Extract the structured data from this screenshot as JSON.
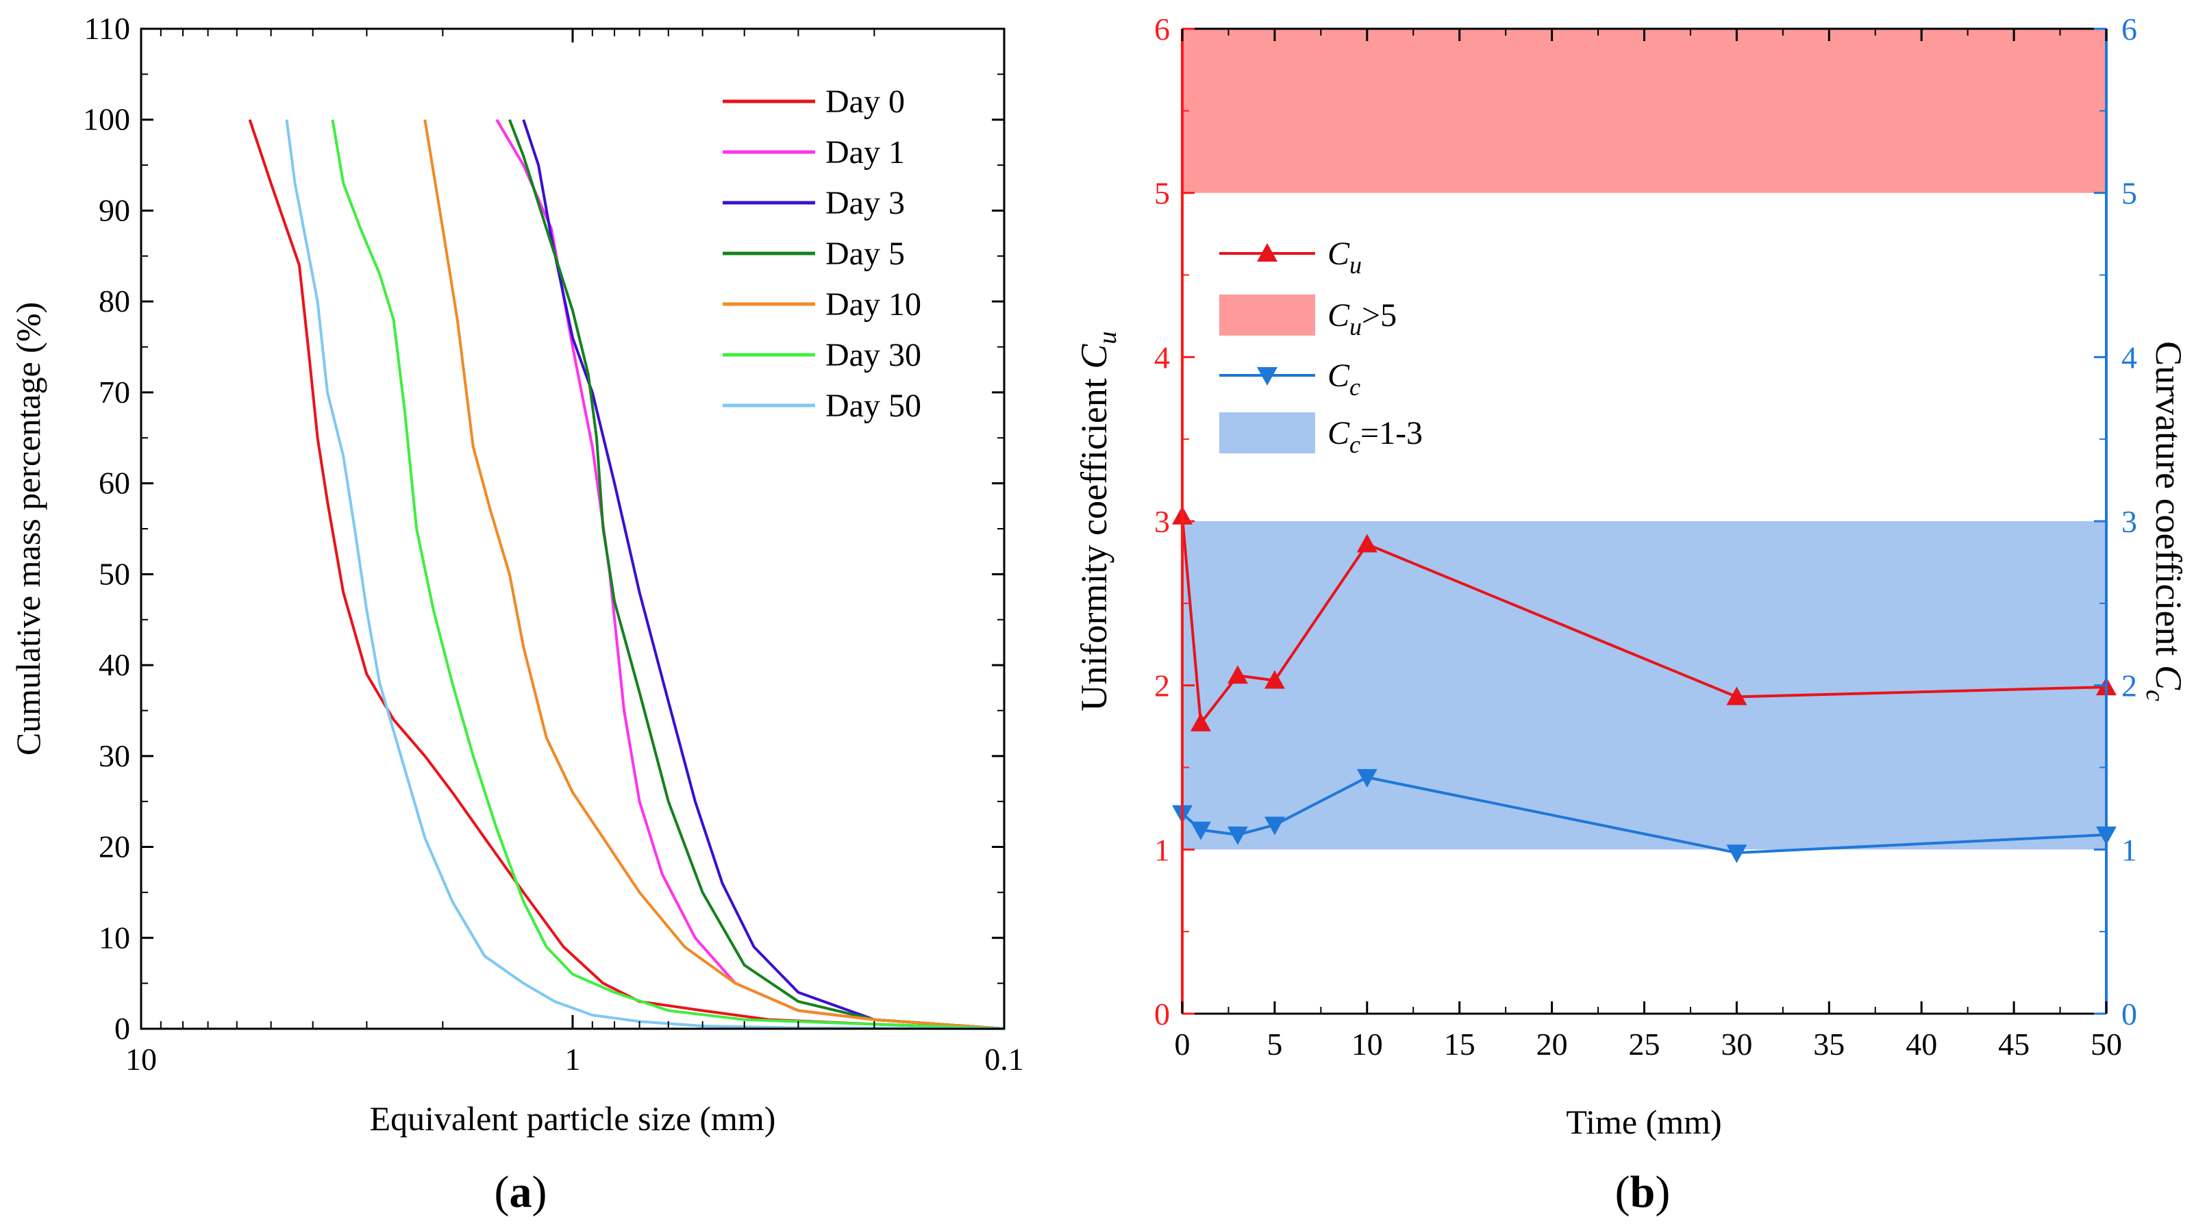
{
  "figure": {
    "panel_a_label": "a",
    "panel_b_label": "b"
  },
  "chart_data": [
    {
      "type": "line",
      "title": "",
      "xlabel": "Equivalent particle size (mm)",
      "ylabel": "Cumulative mass percentage (%)",
      "xscale": "log",
      "xaxis_direction": "reversed",
      "xlim": [
        10,
        0.1
      ],
      "ylim": [
        0,
        110
      ],
      "xticks": [
        10,
        1,
        0.1
      ],
      "xtick_labels": [
        "10",
        "1",
        "0.1"
      ],
      "yticks": [
        0,
        10,
        20,
        30,
        40,
        50,
        60,
        70,
        80,
        90,
        100,
        110
      ],
      "ytick_labels": [
        "0",
        "10",
        "20",
        "30",
        "40",
        "50",
        "60",
        "70",
        "80",
        "90",
        "100",
        "110"
      ],
      "legend_position": "top-right",
      "series": [
        {
          "name": "Day 0",
          "color": "#e8141b",
          "x": [
            5.6,
            5.0,
            4.6,
            4.3,
            4.1,
            3.9,
            3.7,
            3.4,
            3.0,
            2.6,
            2.2,
            1.9,
            1.6,
            1.3,
            1.05,
            0.85,
            0.7,
            0.5,
            0.35,
            0.2,
            0.1
          ],
          "y": [
            100,
            93,
            88,
            84,
            75,
            65,
            58,
            48,
            39,
            34,
            30,
            26,
            21,
            15,
            9,
            5,
            3,
            2,
            1,
            0.5,
            0
          ]
        },
        {
          "name": "Day 1",
          "color": "#ff33ee",
          "x": [
            1.5,
            1.3,
            1.12,
            1.0,
            0.9,
            0.82,
            0.76,
            0.7,
            0.62,
            0.52,
            0.42,
            0.3,
            0.2,
            0.1
          ],
          "y": [
            100,
            95,
            88,
            75,
            64,
            50,
            35,
            25,
            17,
            10,
            5,
            2,
            1,
            0
          ]
        },
        {
          "name": "Day 3",
          "color": "#3a10d0",
          "x": [
            1.3,
            1.2,
            1.12,
            1.0,
            0.9,
            0.8,
            0.7,
            0.6,
            0.52,
            0.45,
            0.38,
            0.3,
            0.2,
            0.1
          ],
          "y": [
            100,
            95,
            87,
            76,
            70,
            60,
            48,
            36,
            25,
            16,
            9,
            4,
            1,
            0
          ]
        },
        {
          "name": "Day 5",
          "color": "#15821e",
          "x": [
            1.4,
            1.3,
            1.15,
            1.0,
            0.92,
            0.88,
            0.85,
            0.8,
            0.7,
            0.6,
            0.5,
            0.4,
            0.3,
            0.2,
            0.1
          ],
          "y": [
            100,
            96,
            88,
            79,
            72,
            65,
            55,
            47,
            37,
            25,
            15,
            7,
            3,
            1,
            0
          ]
        },
        {
          "name": "Day 10",
          "color": "#f08a25",
          "x": [
            2.2,
            2.0,
            1.85,
            1.7,
            1.55,
            1.4,
            1.3,
            1.15,
            1.0,
            0.85,
            0.7,
            0.55,
            0.42,
            0.3,
            0.2,
            0.1
          ],
          "y": [
            100,
            88,
            78,
            64,
            57,
            50,
            42,
            32,
            26,
            21,
            15,
            9,
            5,
            2,
            1,
            0
          ]
        },
        {
          "name": "Day 30",
          "color": "#40ee40",
          "x": [
            3.6,
            3.4,
            3.1,
            2.8,
            2.6,
            2.45,
            2.3,
            2.1,
            1.9,
            1.7,
            1.5,
            1.3,
            1.15,
            1.0,
            0.8,
            0.6,
            0.4,
            0.2,
            0.1
          ],
          "y": [
            100,
            93,
            88,
            83,
            78,
            68,
            55,
            46,
            38,
            30,
            22,
            14,
            9,
            6,
            4,
            2,
            1,
            0.5,
            0
          ]
        },
        {
          "name": "Day 50",
          "color": "#7fc8f4",
          "x": [
            4.6,
            4.4,
            4.2,
            3.9,
            3.7,
            3.4,
            3.2,
            3.0,
            2.8,
            2.5,
            2.2,
            1.9,
            1.6,
            1.3,
            1.1,
            0.9,
            0.7,
            0.5,
            0.3,
            0.1
          ],
          "y": [
            100,
            93,
            88,
            80,
            70,
            63,
            55,
            46,
            38,
            30,
            21,
            14,
            8,
            5,
            3,
            1.5,
            0.8,
            0.3,
            0.1,
            0
          ]
        }
      ]
    },
    {
      "type": "line",
      "title": "",
      "xlabel": "Time (mm)",
      "ylabel_left_prefix": "Uniformity coefficient ",
      "ylabel_left_var": "C",
      "ylabel_left_sub": "u",
      "ylabel_right_prefix": "Curvature coefficient ",
      "ylabel_right_var": "C",
      "ylabel_right_sub": "c",
      "left_axis_color": "#ff1a1a",
      "right_axis_color": "#1e78d8",
      "xlim": [
        0,
        50
      ],
      "ylim_left": [
        0,
        6
      ],
      "ylim_right": [
        0,
        6
      ],
      "xticks": [
        0,
        5,
        10,
        15,
        20,
        25,
        30,
        35,
        40,
        45,
        50
      ],
      "xtick_labels": [
        "0",
        "5",
        "10",
        "15",
        "20",
        "25",
        "30",
        "35",
        "40",
        "45",
        "50"
      ],
      "yticks_left": [
        0,
        1,
        2,
        3,
        4,
        5,
        6
      ],
      "ytick_labels_left": [
        "0",
        "1",
        "2",
        "3",
        "4",
        "5",
        "6"
      ],
      "yticks_right": [
        0,
        1,
        2,
        3,
        4,
        5,
        6
      ],
      "ytick_labels_right": [
        "0",
        "1",
        "2",
        "3",
        "4",
        "5",
        "6"
      ],
      "legend_position": "upper-left",
      "bands": [
        {
          "name": "Cu>5",
          "label_var": "C",
          "label_sub": "u",
          "label_suffix": ">5",
          "y_from": 5,
          "y_to": 6,
          "color": "#ff9a9a"
        },
        {
          "name": "Cc=1-3",
          "label_var": "C",
          "label_sub": "c",
          "label_suffix": "=1-3",
          "y_from": 1,
          "y_to": 3,
          "color": "#a6c6f0"
        }
      ],
      "series": [
        {
          "name": "Cu",
          "label_var": "C",
          "label_sub": "u",
          "marker": "triangle-up",
          "color": "#e8141b",
          "axis": "left",
          "x": [
            0,
            1,
            3,
            5,
            10,
            30,
            50
          ],
          "y": [
            3.03,
            1.77,
            2.06,
            2.03,
            2.86,
            1.93,
            1.99
          ]
        },
        {
          "name": "Cc",
          "label_var": "C",
          "label_sub": "c",
          "marker": "triangle-down",
          "color": "#1e78d8",
          "axis": "right",
          "x": [
            0,
            1,
            3,
            5,
            10,
            30,
            50
          ],
          "y": [
            1.22,
            1.12,
            1.09,
            1.15,
            1.44,
            0.98,
            1.09
          ]
        }
      ]
    }
  ]
}
